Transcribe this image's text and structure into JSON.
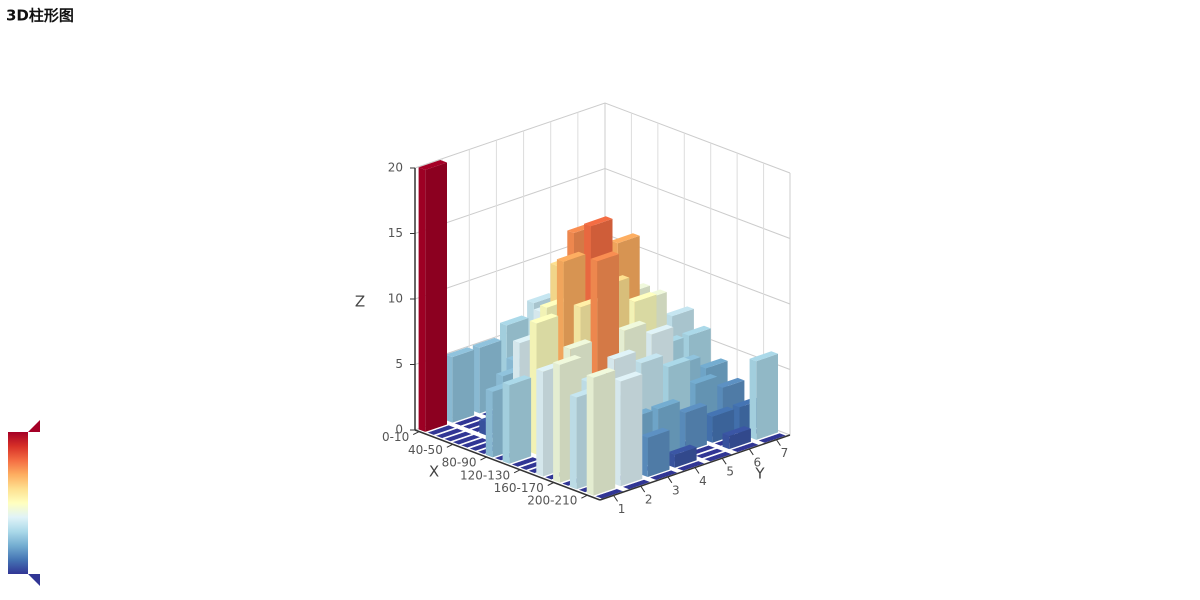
{
  "chart_data": {
    "type": "bar3d",
    "title": "3D柱形图",
    "x_label": "X",
    "y_label": "Y",
    "z_label": "Z",
    "x_categories": [
      "0-10",
      null,
      null,
      null,
      "40-50",
      null,
      null,
      null,
      "80-90",
      null,
      null,
      null,
      "120-130",
      null,
      null,
      null,
      "160-170",
      null,
      null,
      null,
      "200-210",
      null
    ],
    "y_categories": [
      1,
      2,
      3,
      4,
      5,
      6,
      7
    ],
    "zlim": [
      0,
      20
    ],
    "zticks": [
      0,
      5,
      10,
      15,
      20
    ],
    "grid": true,
    "visual_map": {
      "min": 0,
      "max": 20,
      "colors": [
        "#313695",
        "#4575b4",
        "#74add1",
        "#abd9e9",
        "#e0f3f8",
        "#ffffbf",
        "#fee090",
        "#fdae61",
        "#f46d43",
        "#d73027",
        "#a50026"
      ]
    },
    "values": [
      [
        20,
        0,
        0,
        0,
        0,
        0,
        0,
        0,
        5,
        0,
        6,
        0,
        0,
        0,
        8,
        0,
        9,
        0,
        7,
        0,
        9,
        0
      ],
      [
        5,
        0,
        0,
        0,
        1,
        0,
        5,
        0,
        8,
        0,
        10,
        0,
        6,
        0,
        9,
        0,
        7,
        0,
        6,
        0,
        8,
        0
      ],
      [
        5,
        0,
        0,
        0,
        5,
        0,
        6,
        0,
        10,
        0,
        14,
        0,
        11,
        0,
        15,
        0,
        8,
        0,
        4,
        0,
        3,
        0
      ],
      [
        6,
        0,
        0,
        0,
        8,
        0,
        12,
        0,
        15,
        0,
        16,
        0,
        12,
        0,
        9,
        0,
        7,
        0,
        4,
        0,
        1,
        0
      ],
      [
        7,
        0,
        0,
        0,
        10,
        0,
        12,
        0,
        12,
        0,
        14,
        0,
        10,
        0,
        8,
        0,
        6,
        0,
        3,
        0,
        0,
        0
      ],
      [
        8,
        0,
        0,
        0,
        8,
        0,
        10,
        0,
        9,
        0,
        9,
        0,
        6,
        0,
        5,
        0,
        4,
        0,
        2,
        0,
        1,
        0
      ],
      [
        6,
        0,
        0,
        0,
        6,
        0,
        7,
        0,
        6,
        0,
        7,
        0,
        6,
        0,
        4,
        0,
        3,
        0,
        2,
        0,
        6,
        0
      ]
    ]
  }
}
